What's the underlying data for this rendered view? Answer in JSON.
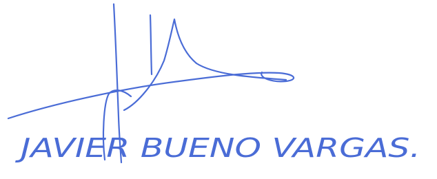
{
  "signature": {
    "name": "JAVIER BUENO VARGAS."
  }
}
